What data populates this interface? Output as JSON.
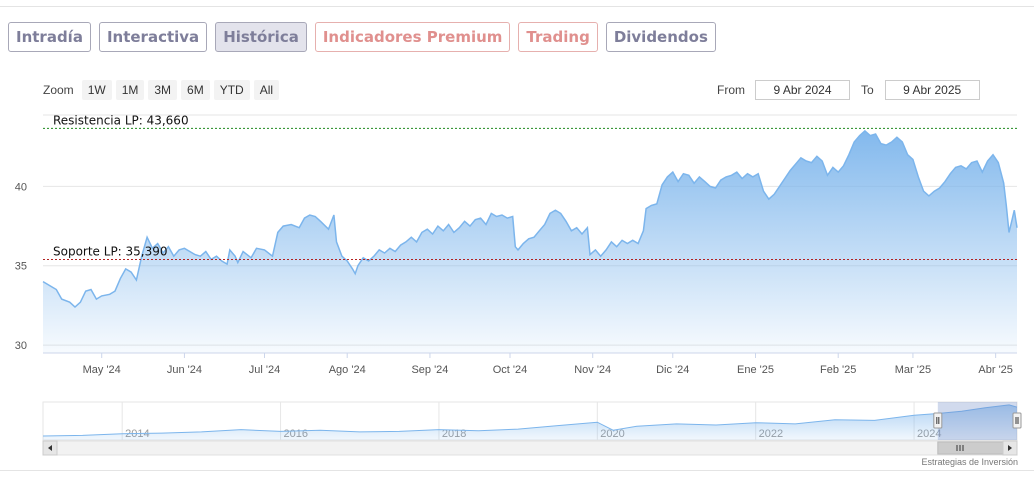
{
  "tabs": [
    {
      "label": "Intradía",
      "variant": "normal"
    },
    {
      "label": "Interactiva",
      "variant": "normal"
    },
    {
      "label": "Histórica",
      "variant": "active"
    },
    {
      "label": "Indicadores Premium",
      "variant": "premium"
    },
    {
      "label": "Trading",
      "variant": "premium"
    },
    {
      "label": "Dividendos",
      "variant": "normal"
    }
  ],
  "zoom": {
    "label": "Zoom",
    "buttons": [
      "1W",
      "1M",
      "3M",
      "6M",
      "YTD",
      "All"
    ]
  },
  "range": {
    "from_label": "From",
    "from_value": "9 Abr 2024",
    "to_label": "To",
    "to_value": "9 Abr 2025"
  },
  "credit": "Estrategias de Inversión",
  "colors": {
    "line": "#7cb5ec",
    "resistance": "#1f8a1f",
    "support": "#b22222",
    "tab_text": "#7e7e9a",
    "premium_text": "#e0908e"
  },
  "chart_data": {
    "type": "area",
    "ylim": [
      29.5,
      44.5
    ],
    "y_ticks": [
      30,
      35,
      40
    ],
    "y_tick_labels": [
      "30",
      "35",
      "40"
    ],
    "x_range": [
      0,
      365
    ],
    "x_ticks": [
      {
        "day": 22,
        "label": "May '24"
      },
      {
        "day": 53,
        "label": "Jun '24"
      },
      {
        "day": 83,
        "label": "Jul '24"
      },
      {
        "day": 114,
        "label": "Ago '24"
      },
      {
        "day": 145,
        "label": "Sep '24"
      },
      {
        "day": 175,
        "label": "Oct '24"
      },
      {
        "day": 206,
        "label": "Nov '24"
      },
      {
        "day": 236,
        "label": "Dic '24"
      },
      {
        "day": 267,
        "label": "Ene '25"
      },
      {
        "day": 298,
        "label": "Feb '25"
      },
      {
        "day": 326,
        "label": "Mar '25"
      },
      {
        "day": 357,
        "label": "Abr '25"
      }
    ],
    "resistance": {
      "label": "Resistencia LP: 43,660",
      "value": 43.66
    },
    "support": {
      "label": "Soporte LP: 35,390",
      "value": 35.39
    },
    "series": [
      {
        "values": [
          [
            0,
            34.0
          ],
          [
            3,
            33.7
          ],
          [
            5,
            33.5
          ],
          [
            7,
            32.9
          ],
          [
            10,
            32.7
          ],
          [
            12,
            32.4
          ],
          [
            14,
            32.7
          ],
          [
            16,
            33.4
          ],
          [
            18,
            33.5
          ],
          [
            20,
            32.9
          ],
          [
            22,
            33.1
          ],
          [
            25,
            33.2
          ],
          [
            27,
            33.4
          ],
          [
            29,
            34.2
          ],
          [
            31,
            34.8
          ],
          [
            33,
            34.6
          ],
          [
            35,
            34.1
          ],
          [
            37,
            35.6
          ],
          [
            38,
            36.2
          ],
          [
            39,
            36.8
          ],
          [
            41,
            36.1
          ],
          [
            43,
            36.4
          ],
          [
            45,
            35.8
          ],
          [
            47,
            36.2
          ],
          [
            49,
            35.6
          ],
          [
            51,
            36.0
          ],
          [
            53,
            36.1
          ],
          [
            55,
            35.9
          ],
          [
            57,
            35.7
          ],
          [
            59,
            35.6
          ],
          [
            61,
            35.9
          ],
          [
            63,
            35.4
          ],
          [
            65,
            35.6
          ],
          [
            67,
            35.3
          ],
          [
            69,
            35.1
          ],
          [
            70,
            36.0
          ],
          [
            72,
            35.6
          ],
          [
            73,
            35.2
          ],
          [
            75,
            35.9
          ],
          [
            78,
            35.5
          ],
          [
            80,
            36.1
          ],
          [
            83,
            36.0
          ],
          [
            86,
            35.6
          ],
          [
            88,
            37.1
          ],
          [
            90,
            37.5
          ],
          [
            93,
            37.6
          ],
          [
            96,
            37.4
          ],
          [
            98,
            38.0
          ],
          [
            100,
            38.2
          ],
          [
            102,
            38.1
          ],
          [
            104,
            37.8
          ],
          [
            107,
            37.3
          ],
          [
            109,
            38.2
          ],
          [
            110,
            36.5
          ],
          [
            112,
            35.6
          ],
          [
            114,
            35.3
          ],
          [
            116,
            34.8
          ],
          [
            117,
            34.5
          ],
          [
            118,
            35.0
          ],
          [
            120,
            35.5
          ],
          [
            122,
            35.3
          ],
          [
            124,
            35.6
          ],
          [
            126,
            36.0
          ],
          [
            128,
            35.8
          ],
          [
            130,
            36.1
          ],
          [
            132,
            35.9
          ],
          [
            134,
            36.3
          ],
          [
            136,
            36.5
          ],
          [
            138,
            36.8
          ],
          [
            140,
            36.5
          ],
          [
            142,
            37.1
          ],
          [
            144,
            37.3
          ],
          [
            146,
            37.0
          ],
          [
            148,
            37.5
          ],
          [
            150,
            37.2
          ],
          [
            152,
            37.6
          ],
          [
            154,
            37.1
          ],
          [
            156,
            37.4
          ],
          [
            158,
            37.8
          ],
          [
            160,
            37.5
          ],
          [
            162,
            37.9
          ],
          [
            164,
            38.0
          ],
          [
            166,
            37.6
          ],
          [
            168,
            38.3
          ],
          [
            170,
            38.1
          ],
          [
            172,
            38.2
          ],
          [
            174,
            38.0
          ],
          [
            176,
            38.1
          ],
          [
            177,
            36.2
          ],
          [
            178,
            36.0
          ],
          [
            180,
            36.4
          ],
          [
            182,
            36.7
          ],
          [
            184,
            36.8
          ],
          [
            186,
            37.2
          ],
          [
            188,
            37.6
          ],
          [
            190,
            38.3
          ],
          [
            192,
            38.5
          ],
          [
            194,
            38.3
          ],
          [
            196,
            37.8
          ],
          [
            198,
            37.2
          ],
          [
            200,
            37.4
          ],
          [
            202,
            37.0
          ],
          [
            204,
            37.4
          ],
          [
            205,
            35.7
          ],
          [
            207,
            36.0
          ],
          [
            209,
            35.6
          ],
          [
            211,
            36.0
          ],
          [
            213,
            36.5
          ],
          [
            215,
            36.2
          ],
          [
            217,
            36.6
          ],
          [
            219,
            36.4
          ],
          [
            221,
            36.6
          ],
          [
            223,
            36.4
          ],
          [
            225,
            37.2
          ],
          [
            226,
            38.6
          ],
          [
            228,
            38.8
          ],
          [
            230,
            38.9
          ],
          [
            232,
            40.1
          ],
          [
            234,
            40.6
          ],
          [
            236,
            40.9
          ],
          [
            238,
            40.3
          ],
          [
            240,
            40.8
          ],
          [
            242,
            40.7
          ],
          [
            244,
            40.2
          ],
          [
            246,
            40.6
          ],
          [
            248,
            40.3
          ],
          [
            250,
            40.0
          ],
          [
            252,
            39.9
          ],
          [
            254,
            40.4
          ],
          [
            256,
            40.6
          ],
          [
            258,
            40.7
          ],
          [
            260,
            40.9
          ],
          [
            262,
            40.5
          ],
          [
            264,
            40.8
          ],
          [
            266,
            40.6
          ],
          [
            268,
            40.8
          ],
          [
            270,
            39.7
          ],
          [
            272,
            39.2
          ],
          [
            274,
            39.5
          ],
          [
            276,
            40.0
          ],
          [
            278,
            40.5
          ],
          [
            280,
            41.0
          ],
          [
            282,
            41.4
          ],
          [
            284,
            41.8
          ],
          [
            286,
            41.6
          ],
          [
            288,
            41.5
          ],
          [
            290,
            41.9
          ],
          [
            292,
            41.6
          ],
          [
            294,
            40.7
          ],
          [
            296,
            41.2
          ],
          [
            298,
            40.9
          ],
          [
            300,
            41.3
          ],
          [
            302,
            42.0
          ],
          [
            304,
            42.8
          ],
          [
            306,
            43.2
          ],
          [
            308,
            43.5
          ],
          [
            310,
            43.2
          ],
          [
            312,
            43.3
          ],
          [
            314,
            42.7
          ],
          [
            316,
            42.6
          ],
          [
            318,
            42.8
          ],
          [
            320,
            43.1
          ],
          [
            322,
            42.8
          ],
          [
            324,
            42.0
          ],
          [
            326,
            41.7
          ],
          [
            328,
            40.6
          ],
          [
            330,
            39.7
          ],
          [
            332,
            39.4
          ],
          [
            334,
            39.7
          ],
          [
            336,
            39.9
          ],
          [
            338,
            40.3
          ],
          [
            340,
            40.8
          ],
          [
            342,
            41.2
          ],
          [
            344,
            41.3
          ],
          [
            346,
            41.1
          ],
          [
            348,
            41.5
          ],
          [
            350,
            41.6
          ],
          [
            352,
            40.9
          ],
          [
            354,
            41.6
          ],
          [
            356,
            42.0
          ],
          [
            358,
            41.5
          ],
          [
            360,
            40.2
          ],
          [
            361,
            38.8
          ],
          [
            362,
            37.1
          ],
          [
            363,
            37.8
          ],
          [
            364,
            38.5
          ],
          [
            365,
            37.4
          ]
        ]
      }
    ],
    "navigator": {
      "x_ticks": [
        "2014",
        "2016",
        "2018",
        "2020",
        "2022",
        "2024"
      ],
      "values": [
        [
          2013.0,
          36.5
        ],
        [
          2013.5,
          36.6
        ],
        [
          2014.0,
          36.9
        ],
        [
          2014.5,
          37.0
        ],
        [
          2015.0,
          37.2
        ],
        [
          2015.5,
          37.6
        ],
        [
          2016.0,
          37.3
        ],
        [
          2016.5,
          37.5
        ],
        [
          2017.0,
          37.2
        ],
        [
          2017.5,
          37.3
        ],
        [
          2018.0,
          37.6
        ],
        [
          2018.5,
          37.4
        ],
        [
          2019.0,
          37.7
        ],
        [
          2019.5,
          38.3
        ],
        [
          2020.0,
          38.9
        ],
        [
          2020.2,
          37.5
        ],
        [
          2020.5,
          38.2
        ],
        [
          2021.0,
          38.6
        ],
        [
          2021.5,
          38.4
        ],
        [
          2022.0,
          38.8
        ],
        [
          2022.5,
          38.6
        ],
        [
          2023.0,
          39.3
        ],
        [
          2023.5,
          39.2
        ],
        [
          2024.0,
          40.1
        ],
        [
          2024.3,
          40.4
        ],
        [
          2024.6,
          40.8
        ],
        [
          2024.9,
          41.4
        ],
        [
          2025.2,
          41.9
        ],
        [
          2025.3,
          41.5
        ]
      ],
      "x_range": [
        2013.0,
        2025.3
      ],
      "ylim": [
        35.8,
        42.4
      ],
      "window": [
        2024.3,
        2025.3
      ]
    }
  }
}
